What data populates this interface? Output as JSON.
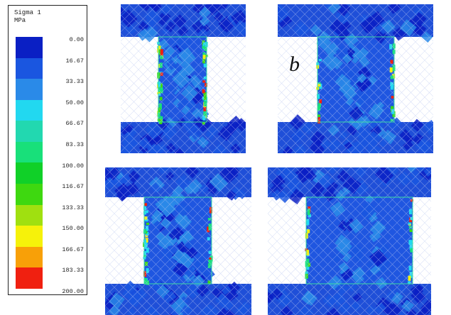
{
  "legend": {
    "title_line1": "Sigma 1",
    "title_line2": "MPa",
    "colors": [
      "#0a1fc4",
      "#1a56e0",
      "#2a8ae8",
      "#22d8f0",
      "#22d8b0",
      "#18e07a",
      "#10d028",
      "#3ed810",
      "#a0e010",
      "#f6f20a",
      "#f8a008",
      "#f02010"
    ],
    "ticks": [
      "0.00",
      "16.67",
      "33.33",
      "50.00",
      "66.67",
      "83.33",
      "100.00",
      "116.67",
      "133.33",
      "150.00",
      "166.67",
      "183.33",
      "200.00"
    ]
  },
  "panels": [
    {
      "id": "top-left",
      "label": ""
    },
    {
      "id": "top-right",
      "label": "b"
    },
    {
      "id": "bottom-left",
      "label": ""
    },
    {
      "id": "bottom-right",
      "label": ""
    }
  ]
}
